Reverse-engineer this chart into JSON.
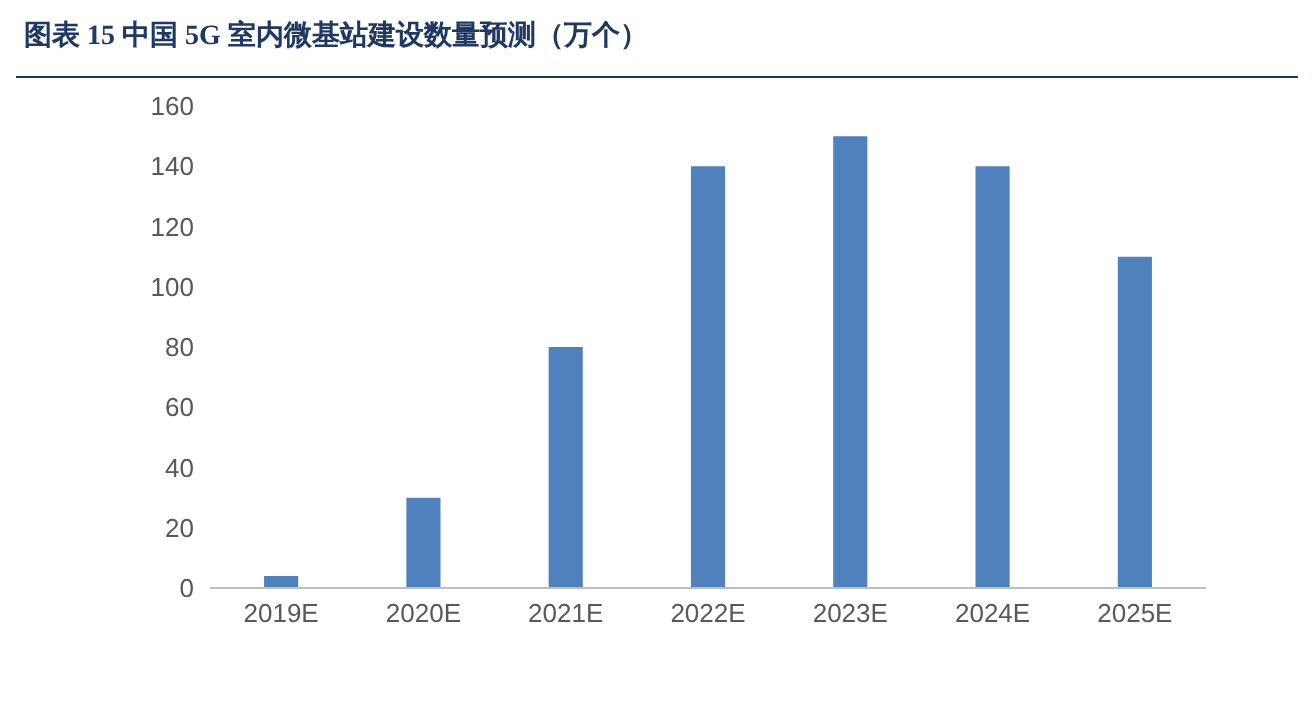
{
  "chart_data": {
    "type": "bar",
    "title": "图表 15 中国 5G 室内微基站建设数量预测（万个）",
    "categories": [
      "2019E",
      "2020E",
      "2021E",
      "2022E",
      "2023E",
      "2024E",
      "2025E"
    ],
    "values": [
      4,
      30,
      80,
      140,
      150,
      140,
      110
    ],
    "color": "#4f81bd",
    "ylim": [
      0,
      160
    ],
    "yticks": [
      0,
      20,
      40,
      60,
      80,
      100,
      120,
      140,
      160
    ],
    "grid": false
  }
}
